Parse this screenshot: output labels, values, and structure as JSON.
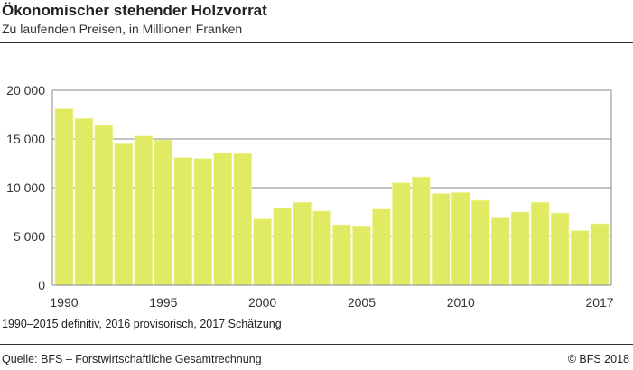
{
  "header": {
    "title": "Ökonomischer stehender Holzvorrat",
    "subtitle": "Zu laufenden Preisen, in Millionen Franken"
  },
  "footer": {
    "note": "1990–2015 definitiv, 2016 provisorisch, 2017 Schätzung",
    "source": "Quelle: BFS – Forstwirtschaftliche Gesamtrechnung",
    "copyright": "© BFS  2018"
  },
  "chart_data": {
    "type": "bar",
    "title": "Ökonomischer stehender Holzvorrat",
    "subtitle": "Zu laufenden Preisen, in Millionen Franken",
    "categories": [
      1990,
      1991,
      1992,
      1993,
      1994,
      1995,
      1996,
      1997,
      1998,
      1999,
      2000,
      2001,
      2002,
      2003,
      2004,
      2005,
      2006,
      2007,
      2008,
      2009,
      2010,
      2011,
      2012,
      2013,
      2014,
      2015,
      2016,
      2017
    ],
    "values": [
      18100,
      17100,
      16400,
      14500,
      15300,
      14900,
      13100,
      13000,
      13600,
      13500,
      6800,
      7900,
      8500,
      7600,
      6200,
      6100,
      7800,
      10500,
      11100,
      9400,
      9500,
      8700,
      6900,
      7500,
      8500,
      7400,
      5600,
      6300
    ],
    "xticks": [
      "1990",
      "1995",
      "2000",
      "2005",
      "2010",
      "2017"
    ],
    "yticks": [
      "0",
      "5 000",
      "10 000",
      "15 000",
      "20 000"
    ],
    "ytick_values": [
      0,
      5000,
      10000,
      15000,
      20000
    ],
    "ylim": [
      0,
      20000
    ],
    "grid": true,
    "bar_color": "#e1ea63"
  }
}
